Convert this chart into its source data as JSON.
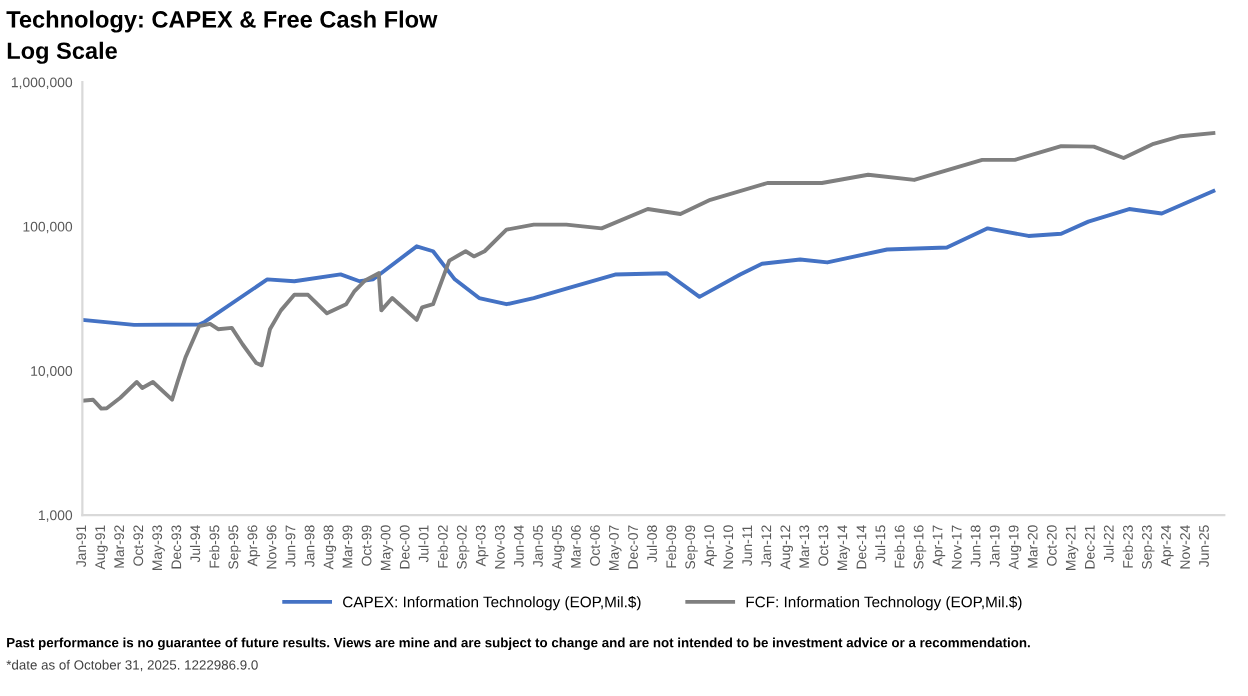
{
  "chart_data": {
    "type": "line",
    "title": "Technology: CAPEX & Free Cash Flow",
    "subtitle": "Log Scale",
    "series": [
      {
        "name": "CAPEX: Information Technology (EOP,Mil.$)",
        "color": "#4472c4",
        "x": [
          "1991-01",
          "1992-08",
          "1994-08",
          "1994-10",
          "1996-09",
          "1997-07",
          "1998-12",
          "1999-07",
          "1999-12",
          "2001-04",
          "2001-10",
          "2002-06",
          "2003-03",
          "2004-01",
          "2004-11",
          "2005-11",
          "2007-05",
          "2008-12",
          "2009-12",
          "2011-03",
          "2011-11",
          "2013-01",
          "2013-11",
          "2015-09",
          "2017-07",
          "2018-10",
          "2020-01",
          "2021-01",
          "2021-11",
          "2023-02",
          "2024-02",
          "2025-09"
        ],
        "values": [
          22500,
          20800,
          20900,
          21800,
          43000,
          41700,
          46500,
          41700,
          43000,
          72800,
          67300,
          43000,
          31900,
          28900,
          31900,
          37100,
          46400,
          47400,
          32500,
          46400,
          55100,
          59000,
          56300,
          69200,
          71400,
          97000,
          85900,
          89000,
          108000,
          132000,
          123000,
          176000
        ]
      },
      {
        "name": "FCF: Information Technology (EOP,Mil.$)",
        "color": "#7f7f7f",
        "x": [
          "1991-01",
          "1991-05",
          "1991-08",
          "1991-10",
          "1992-03",
          "1992-09",
          "1992-11",
          "1993-03",
          "1993-10",
          "1993-12",
          "1994-03",
          "1994-08",
          "1994-12",
          "1995-03",
          "1995-08",
          "1995-12",
          "1996-05",
          "1996-07",
          "1996-10",
          "1997-02",
          "1997-07",
          "1997-12",
          "1998-07",
          "1999-02",
          "1999-05",
          "1999-09",
          "2000-02",
          "2000-03",
          "2000-07",
          "2001-04",
          "2001-06",
          "2001-10",
          "2002-04",
          "2002-10",
          "2003-01",
          "2003-05",
          "2004-01",
          "2004-11",
          "2005-11",
          "2006-12",
          "2008-05",
          "2009-05",
          "2010-04",
          "2012-01",
          "2013-09",
          "2015-02",
          "2016-07",
          "2018-08",
          "2019-08",
          "2021-01",
          "2022-01",
          "2022-12",
          "2023-11",
          "2024-09",
          "2025-09"
        ],
        "values": [
          6200,
          6300,
          5460,
          5500,
          6500,
          8360,
          7600,
          8360,
          6300,
          8360,
          12400,
          20400,
          21100,
          19400,
          19800,
          15200,
          11300,
          10900,
          19400,
          26200,
          33600,
          33600,
          25000,
          28900,
          35300,
          42200,
          47500,
          26200,
          31900,
          22500,
          27500,
          28900,
          58000,
          67300,
          62000,
          67300,
          95000,
          103000,
          103000,
          97000,
          132000,
          122000,
          153000,
          200000,
          200000,
          228000,
          210000,
          289000,
          289000,
          360000,
          357000,
          298000,
          374000,
          422000,
          444000
        ]
      }
    ],
    "log": "y",
    "ylim": [
      1000,
      1000000
    ],
    "yticks": [
      {
        "value": 1000,
        "label": "1,000"
      },
      {
        "value": 10000,
        "label": "10,000"
      },
      {
        "value": 100000,
        "label": "100,000"
      },
      {
        "value": 1000000,
        "label": "1,000,000"
      }
    ],
    "xlim": [
      "1991-01",
      "2026-01"
    ],
    "xticks": [
      {
        "value": "1991-01",
        "label": "Jan-91"
      },
      {
        "value": "1991-08",
        "label": "Aug-91"
      },
      {
        "value": "1992-03",
        "label": "Mar-92"
      },
      {
        "value": "1992-10",
        "label": "Oct-92"
      },
      {
        "value": "1993-05",
        "label": "May-93"
      },
      {
        "value": "1993-12",
        "label": "Dec-93"
      },
      {
        "value": "1994-07",
        "label": "Jul-94"
      },
      {
        "value": "1995-02",
        "label": "Feb-95"
      },
      {
        "value": "1995-09",
        "label": "Sep-95"
      },
      {
        "value": "1996-04",
        "label": "Apr-96"
      },
      {
        "value": "1996-11",
        "label": "Nov-96"
      },
      {
        "value": "1997-06",
        "label": "Jun-97"
      },
      {
        "value": "1998-01",
        "label": "Jan-98"
      },
      {
        "value": "1998-08",
        "label": "Aug-98"
      },
      {
        "value": "1999-03",
        "label": "Mar-99"
      },
      {
        "value": "1999-10",
        "label": "Oct-99"
      },
      {
        "value": "2000-05",
        "label": "May-00"
      },
      {
        "value": "2000-12",
        "label": "Dec-00"
      },
      {
        "value": "2001-07",
        "label": "Jul-01"
      },
      {
        "value": "2002-02",
        "label": "Feb-02"
      },
      {
        "value": "2002-09",
        "label": "Sep-02"
      },
      {
        "value": "2003-04",
        "label": "Apr-03"
      },
      {
        "value": "2003-11",
        "label": "Nov-03"
      },
      {
        "value": "2004-06",
        "label": "Jun-04"
      },
      {
        "value": "2005-01",
        "label": "Jan-05"
      },
      {
        "value": "2005-08",
        "label": "Aug-05"
      },
      {
        "value": "2006-03",
        "label": "Mar-06"
      },
      {
        "value": "2006-10",
        "label": "Oct-06"
      },
      {
        "value": "2007-05",
        "label": "May-07"
      },
      {
        "value": "2007-12",
        "label": "Dec-07"
      },
      {
        "value": "2008-07",
        "label": "Jul-08"
      },
      {
        "value": "2009-02",
        "label": "Feb-09"
      },
      {
        "value": "2009-09",
        "label": "Sep-09"
      },
      {
        "value": "2010-04",
        "label": "Apr-10"
      },
      {
        "value": "2010-11",
        "label": "Nov-10"
      },
      {
        "value": "2011-06",
        "label": "Jun-11"
      },
      {
        "value": "2012-01",
        "label": "Jan-12"
      },
      {
        "value": "2012-08",
        "label": "Aug-12"
      },
      {
        "value": "2013-03",
        "label": "Mar-13"
      },
      {
        "value": "2013-10",
        "label": "Oct-13"
      },
      {
        "value": "2014-05",
        "label": "May-14"
      },
      {
        "value": "2014-12",
        "label": "Dec-14"
      },
      {
        "value": "2015-07",
        "label": "Jul-15"
      },
      {
        "value": "2016-02",
        "label": "Feb-16"
      },
      {
        "value": "2016-09",
        "label": "Sep-16"
      },
      {
        "value": "2017-04",
        "label": "Apr-17"
      },
      {
        "value": "2017-11",
        "label": "Nov-17"
      },
      {
        "value": "2018-06",
        "label": "Jun-18"
      },
      {
        "value": "2019-01",
        "label": "Jan-19"
      },
      {
        "value": "2019-08",
        "label": "Aug-19"
      },
      {
        "value": "2020-03",
        "label": "Mar-20"
      },
      {
        "value": "2020-10",
        "label": "Oct-20"
      },
      {
        "value": "2021-05",
        "label": "May-21"
      },
      {
        "value": "2021-12",
        "label": "Dec-21"
      },
      {
        "value": "2022-07",
        "label": "Jul-22"
      },
      {
        "value": "2023-02",
        "label": "Feb-23"
      },
      {
        "value": "2023-09",
        "label": "Sep-23"
      },
      {
        "value": "2024-04",
        "label": "Apr-24"
      },
      {
        "value": "2024-11",
        "label": "Nov-24"
      },
      {
        "value": "2025-06",
        "label": "Jun-25"
      }
    ],
    "grid": false,
    "legend": "bottom",
    "line_style": "solid",
    "annotations": [
      "Past performance is no guarantee of future results. Views are mine and are subject to change and are not intended to be investment advice or a recommendation.",
      "*date as of October 31, 2025. 1222986.9.0"
    ]
  }
}
